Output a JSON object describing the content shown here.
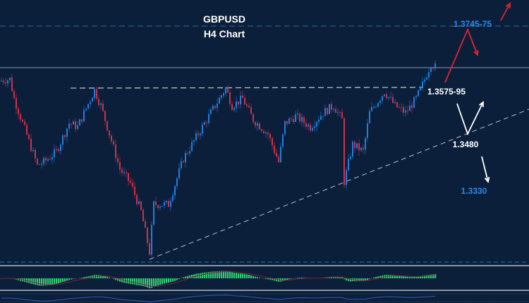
{
  "chart_data": {
    "type": "candlestick",
    "title": "GBPUSD",
    "subtitle": "H4 Chart",
    "colors": {
      "background": "#0b1f3a",
      "bull": "#1e7fe0",
      "bear": "#d0304a",
      "target_up": "#2a8cf0",
      "arrow_bull": "#e0242e",
      "arrow_neutral": "#ffffff",
      "histogram": "#2ecc71",
      "signal": "#8a1c3a",
      "lower_line": "#2a5fc0"
    },
    "price_range": [
      1.3045,
      1.3819
    ],
    "path": [
      [
        0,
        1.3589
      ],
      [
        5,
        1.3595
      ],
      [
        7,
        1.3539
      ],
      [
        18,
        1.3349
      ],
      [
        22,
        1.3363
      ],
      [
        27,
        1.3389
      ],
      [
        33,
        1.3469
      ],
      [
        37,
        1.3459
      ],
      [
        45,
        1.3563
      ],
      [
        48,
        1.3519
      ],
      [
        53,
        1.3419
      ],
      [
        57,
        1.3339
      ],
      [
        62,
        1.3299
      ],
      [
        67,
        1.3219
      ],
      [
        71,
        1.3103
      ],
      [
        73,
        1.3239
      ],
      [
        80,
        1.3239
      ],
      [
        87,
        1.3369
      ],
      [
        100,
        1.3499
      ],
      [
        107,
        1.3569
      ],
      [
        110,
        1.3519
      ],
      [
        115,
        1.3539
      ],
      [
        120,
        1.3479
      ],
      [
        127,
        1.3439
      ],
      [
        132,
        1.3359
      ],
      [
        135,
        1.3469
      ],
      [
        140,
        1.3489
      ],
      [
        147,
        1.3459
      ],
      [
        153,
        1.3499
      ],
      [
        158,
        1.3519
      ],
      [
        162,
        1.3479
      ],
      [
        163,
        1.3303
      ],
      [
        167,
        1.3409
      ],
      [
        172,
        1.3389
      ],
      [
        175,
        1.3499
      ],
      [
        182,
        1.3559
      ],
      [
        187,
        1.3519
      ],
      [
        192,
        1.3499
      ],
      [
        197,
        1.3539
      ],
      [
        200,
        1.3579
      ],
      [
        204,
        1.3639
      ],
      [
        206,
        1.3629
      ]
    ],
    "levels": {
      "target": {
        "label": "1.3745-75",
        "price": 1.3745
      },
      "resistance": {
        "label": "1.3575-95",
        "price": 1.3575
      },
      "support": {
        "label": "1.3480",
        "price": 1.348
      },
      "lower_target": {
        "label": "1.3330",
        "price": 1.333
      },
      "current": 1.3627
    }
  }
}
